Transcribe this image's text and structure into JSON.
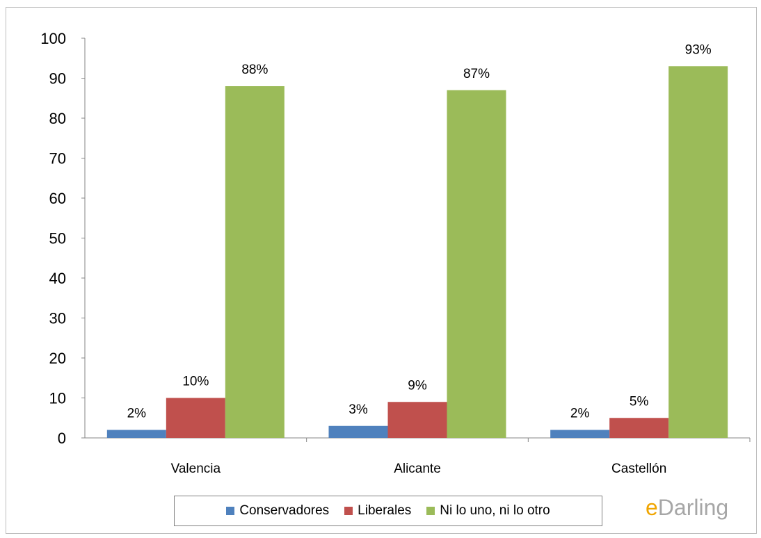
{
  "chart_data": {
    "type": "bar",
    "categories": [
      "Valencia",
      "Alicante",
      "Castellón"
    ],
    "series": [
      {
        "name": "Conservadores",
        "values": [
          2,
          3,
          2
        ],
        "labels": [
          "2%",
          "3%",
          "2%"
        ],
        "color": "#4f81bd"
      },
      {
        "name": "Liberales",
        "values": [
          10,
          9,
          5
        ],
        "labels": [
          "10%",
          "9%",
          "5%"
        ],
        "color": "#c0504d"
      },
      {
        "name": "Ni lo uno, ni lo otro",
        "values": [
          88,
          87,
          93
        ],
        "labels": [
          "88%",
          "87%",
          "93%"
        ],
        "color": "#9bbb59"
      }
    ],
    "ylim": [
      0,
      100
    ],
    "yticks": [
      "0",
      "10",
      "20",
      "30",
      "40",
      "50",
      "60",
      "70",
      "80",
      "90",
      "100"
    ],
    "grid": false,
    "legend_position": "bottom"
  },
  "brand": {
    "prefix": "e",
    "rest": "Darling"
  }
}
